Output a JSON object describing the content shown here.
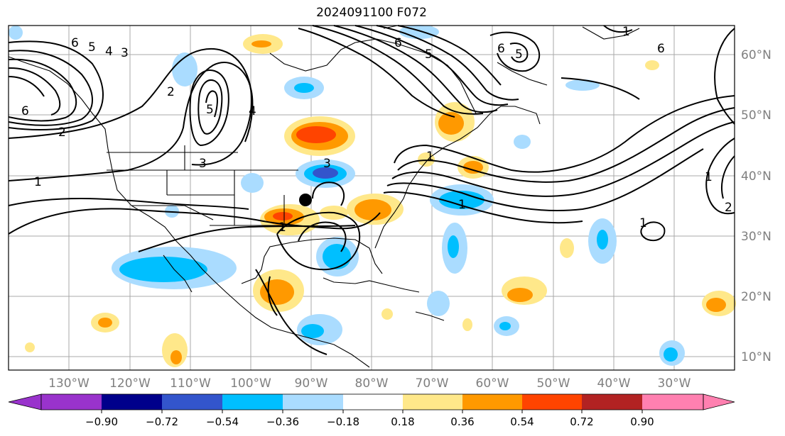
{
  "title": "2024091100 F072",
  "map": {
    "lon_ticks": [
      "130°W",
      "120°W",
      "110°W",
      "100°W",
      "90°W",
      "80°W",
      "70°W",
      "60°W",
      "50°W",
      "40°W",
      "30°W"
    ],
    "lat_ticks": [
      "60°N",
      "50°N",
      "40°N",
      "30°N",
      "20°N",
      "10°N"
    ],
    "marker": "filled-circle"
  },
  "contour_labels": [
    "6",
    "5",
    "4",
    "3",
    "2",
    "1",
    "6",
    "5",
    "4",
    "3",
    "2",
    "1",
    "3",
    "1",
    "1",
    "1",
    "6",
    "5",
    "6",
    "5",
    "6",
    "1",
    "2",
    "1"
  ],
  "colorbar": {
    "ticks": [
      "−0.90",
      "−0.72",
      "−0.54",
      "−0.36",
      "−0.18",
      "0.18",
      "0.36",
      "0.54",
      "0.72",
      "0.90"
    ],
    "colors": [
      "#9933cc",
      "#9933cc",
      "#00008b",
      "#3355cc",
      "#00bfff",
      "#aadcff",
      "#ffffff",
      "#ffe88a",
      "#ff9900",
      "#ff4400",
      "#b22222",
      "#ff80b0",
      "#ff80b0"
    ],
    "extend": "both"
  }
}
